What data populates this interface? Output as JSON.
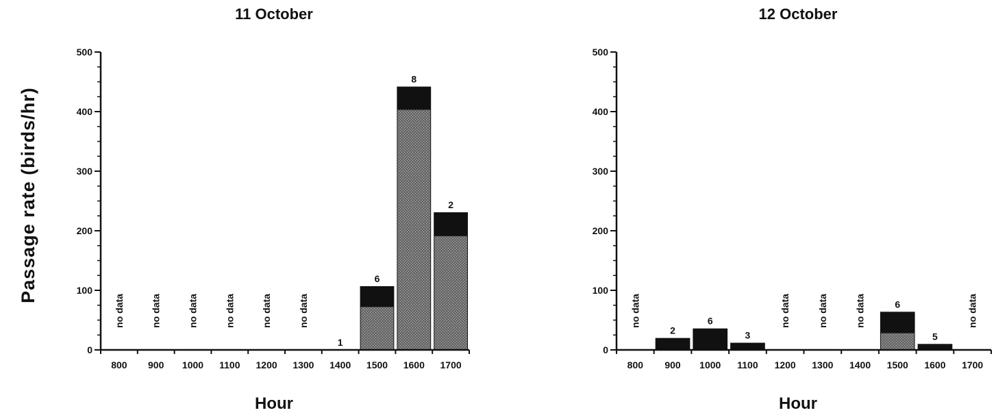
{
  "ylabel": "Passage   rate   (birds/hr)",
  "chart_data": [
    {
      "type": "bar",
      "title": "11 October",
      "xlabel": "Hour",
      "ylim": [
        0,
        500
      ],
      "yticks": [
        0,
        100,
        200,
        300,
        400,
        500
      ],
      "categories": [
        "800",
        "900",
        "1000",
        "1100",
        "1200",
        "1300",
        "1400",
        "1500",
        "1600",
        "1700"
      ],
      "values": [
        null,
        null,
        null,
        null,
        null,
        null,
        0,
        107,
        442,
        231
      ],
      "lower_values": [
        null,
        null,
        null,
        null,
        null,
        null,
        0,
        72,
        403,
        191
      ],
      "bar_labels": [
        "no data",
        "no data",
        "no data",
        "no data",
        "no data",
        "no data",
        "1",
        "6",
        "8",
        "2"
      ],
      "colors": {
        "total": "#111111",
        "lower": "#555555"
      }
    },
    {
      "type": "bar",
      "title": "12 October",
      "xlabel": "Hour",
      "ylim": [
        0,
        500
      ],
      "yticks": [
        0,
        100,
        200,
        300,
        400,
        500
      ],
      "categories": [
        "800",
        "900",
        "1000",
        "1100",
        "1200",
        "1300",
        "1400",
        "1500",
        "1600",
        "1700"
      ],
      "values": [
        null,
        20,
        36,
        12,
        null,
        null,
        null,
        64,
        10,
        null
      ],
      "lower_values": [
        null,
        0,
        0,
        0,
        null,
        null,
        null,
        28,
        0,
        null
      ],
      "bar_labels": [
        "no data",
        "2",
        "6",
        "3",
        "no data",
        "no data",
        "no data",
        "6",
        "5",
        "no data"
      ],
      "colors": {
        "total": "#111111",
        "lower": "#555555"
      }
    }
  ]
}
